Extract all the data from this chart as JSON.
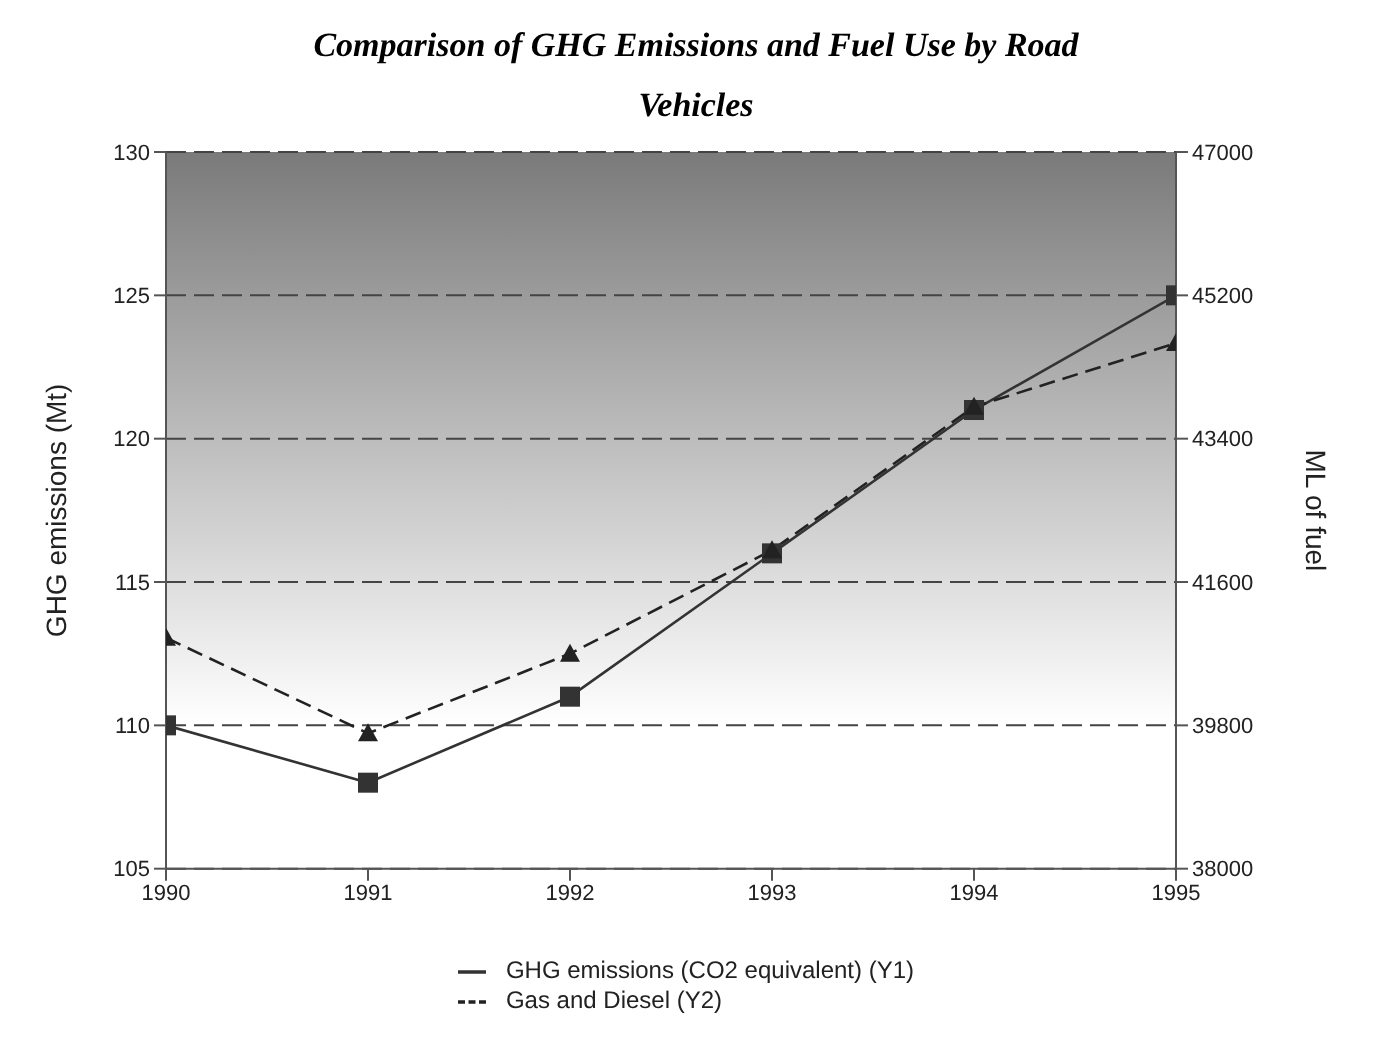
{
  "chart_data": {
    "type": "line",
    "title": "Comparison of GHG Emissions and Fuel Use by Road Vehicles",
    "ylabel": "GHG emissions (Mt)",
    "y2label": "ML of fuel",
    "x": [
      1990,
      1991,
      1992,
      1993,
      1994,
      1995
    ],
    "xlim": [
      1990,
      1995
    ],
    "xticks": [
      1990,
      1991,
      1992,
      1993,
      1994,
      1995
    ],
    "ylim": [
      105,
      130
    ],
    "yticks": [
      105,
      110,
      115,
      120,
      125,
      130
    ],
    "y2lim": [
      38000,
      47000
    ],
    "y2ticks": [
      38000,
      39800,
      41600,
      43400,
      45200,
      47000
    ],
    "grid": "y",
    "legend": "bottom",
    "series": [
      {
        "name": "GHG emissions (CO2 equivalent) (Y1)",
        "color": "#333333",
        "values": [
          110,
          108,
          111,
          116,
          121,
          125
        ],
        "marker": "square",
        "line_style": "solid"
      },
      {
        "name": "Gas and Diesel (Y2)",
        "color": "#222222",
        "values": [
          40900,
          39700,
          40700,
          42000,
          43800,
          44600
        ],
        "axis": "y2",
        "marker": "triangle",
        "line_style": "dashed"
      }
    ]
  }
}
